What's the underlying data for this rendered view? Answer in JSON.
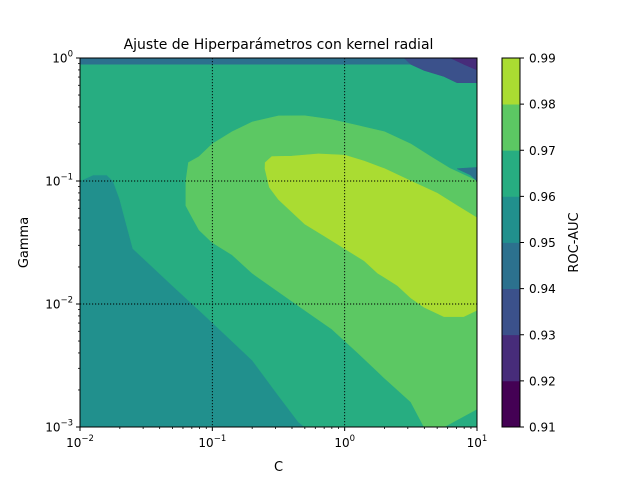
{
  "chart_data": {
    "type": "contourf",
    "title": "Ajuste de Hiperparámetros con kernel radial",
    "xlabel": "C",
    "ylabel": "Gamma",
    "x_scale": "log",
    "y_scale": "log",
    "xlim": [
      0.01,
      10
    ],
    "ylim": [
      0.001,
      1
    ],
    "x_ticks": [
      {
        "base": "10",
        "exp": "−2",
        "value": 0.01
      },
      {
        "base": "10",
        "exp": "−1",
        "value": 0.1
      },
      {
        "base": "10",
        "exp": "0",
        "value": 1
      },
      {
        "base": "10",
        "exp": "1",
        "value": 10
      }
    ],
    "y_ticks": [
      {
        "base": "10",
        "exp": "−3",
        "value": 0.001
      },
      {
        "base": "10",
        "exp": "−2",
        "value": 0.01
      },
      {
        "base": "10",
        "exp": "−1",
        "value": 0.1
      },
      {
        "base": "10",
        "exp": "0",
        "value": 1
      }
    ],
    "grid": "dotted, major ticks",
    "colorbar": {
      "label": "ROC-AUC",
      "levels": [
        0.91,
        0.92,
        0.93,
        0.94,
        0.95,
        0.96,
        0.97,
        0.98,
        0.99
      ],
      "tick_labels": [
        "0.91",
        "0.92",
        "0.93",
        "0.94",
        "0.95",
        "0.96",
        "0.97",
        "0.98",
        "0.99"
      ],
      "colors": [
        "#440154",
        "#472c7a",
        "#3b518b",
        "#2c718e",
        "#21908d",
        "#27ad81",
        "#5cc863",
        "#aadc32",
        "#d8e219"
      ]
    },
    "regions": [
      {
        "level": 0.95,
        "points": [
          [
            0.01,
            0.001
          ],
          [
            10,
            0.001
          ],
          [
            10,
            1
          ],
          [
            0.01,
            1
          ]
        ]
      },
      {
        "level": 0.96,
        "points": [
          [
            0.01,
            0.1
          ],
          [
            0.0126,
            0.112
          ],
          [
            0.0159,
            0.112
          ],
          [
            0.0178,
            0.1
          ],
          [
            0.02,
            0.0708
          ],
          [
            0.0224,
            0.0447
          ],
          [
            0.0251,
            0.0282
          ],
          [
            0.0316,
            0.0224
          ],
          [
            0.05,
            0.0141
          ],
          [
            0.0794,
            0.0089
          ],
          [
            0.126,
            0.0056
          ],
          [
            0.2,
            0.0035
          ],
          [
            0.316,
            0.0018
          ],
          [
            0.447,
            0.0011
          ],
          [
            0.5,
            0.001
          ],
          [
            10,
            0.001
          ],
          [
            10,
            0.891
          ],
          [
            0.01,
            0.891
          ]
        ]
      },
      {
        "level": 0.97,
        "points": [
          [
            0.0631,
            0.063
          ],
          [
            0.0631,
            0.1
          ],
          [
            0.0661,
            0.141
          ],
          [
            0.0794,
            0.158
          ],
          [
            0.1,
            0.2
          ],
          [
            0.141,
            0.251
          ],
          [
            0.2,
            0.302
          ],
          [
            0.316,
            0.338
          ],
          [
            0.5,
            0.339
          ],
          [
            0.794,
            0.316
          ],
          [
            1.26,
            0.282
          ],
          [
            2,
            0.251
          ],
          [
            3.16,
            0.2
          ],
          [
            4.47,
            0.158
          ],
          [
            6.31,
            0.126
          ],
          [
            10,
            0.1
          ],
          [
            10,
            0.0014
          ],
          [
            5.62,
            0.001
          ],
          [
            3.98,
            0.001
          ],
          [
            3.16,
            0.0016
          ],
          [
            2,
            0.0025
          ],
          [
            1.26,
            0.004
          ],
          [
            0.794,
            0.0063
          ],
          [
            0.5,
            0.0089
          ],
          [
            0.316,
            0.0126
          ],
          [
            0.2,
            0.0178
          ],
          [
            0.141,
            0.0251
          ],
          [
            0.1,
            0.0316
          ],
          [
            0.0794,
            0.04
          ],
          [
            0.0708,
            0.05
          ]
        ]
      },
      {
        "level": 0.98,
        "points": [
          [
            0.25,
            0.126
          ],
          [
            0.251,
            0.141
          ],
          [
            0.282,
            0.158
          ],
          [
            0.398,
            0.159
          ],
          [
            0.631,
            0.166
          ],
          [
            1,
            0.162
          ],
          [
            1.41,
            0.145
          ],
          [
            2,
            0.126
          ],
          [
            3.16,
            0.1
          ],
          [
            5.01,
            0.0794
          ],
          [
            7.08,
            0.063
          ],
          [
            10,
            0.0501
          ],
          [
            10,
            0.0089
          ],
          [
            7.94,
            0.0079
          ],
          [
            5.62,
            0.0079
          ],
          [
            3.98,
            0.0094
          ],
          [
            3.16,
            0.0112
          ],
          [
            2.51,
            0.0141
          ],
          [
            1.78,
            0.0178
          ],
          [
            1.41,
            0.0224
          ],
          [
            1,
            0.0282
          ],
          [
            0.708,
            0.0355
          ],
          [
            0.5,
            0.0447
          ],
          [
            0.398,
            0.0562
          ],
          [
            0.316,
            0.0708
          ],
          [
            0.27,
            0.0891
          ]
        ]
      },
      {
        "level": 0.94,
        "points": [
          [
            0.01,
            0.891
          ],
          [
            10,
            0.891
          ],
          [
            10,
            0.63
          ],
          [
            7.08,
            0.63
          ],
          [
            5.62,
            0.708
          ],
          [
            3.98,
            0.794
          ],
          [
            3.16,
            0.891
          ],
          [
            2.82,
            1
          ],
          [
            0.01,
            1
          ]
        ]
      },
      {
        "level": 0.94,
        "points": [
          [
            10,
            0.1
          ],
          [
            8.91,
            0.112
          ],
          [
            7.08,
            0.126
          ],
          [
            10,
            0.129
          ]
        ]
      },
      {
        "level": 0.93,
        "points": [
          [
            2.82,
            1
          ],
          [
            3.16,
            0.891
          ],
          [
            3.98,
            0.794
          ],
          [
            5.62,
            0.708
          ],
          [
            7.08,
            0.63
          ],
          [
            10,
            0.63
          ],
          [
            10,
            0.8
          ],
          [
            7.94,
            0.891
          ],
          [
            6.31,
            1
          ]
        ]
      },
      {
        "level": 0.92,
        "points": [
          [
            6.31,
            1
          ],
          [
            7.94,
            0.891
          ],
          [
            10,
            0.8
          ],
          [
            10,
            1
          ]
        ]
      },
      {
        "level": 0.96,
        "points": [
          [
            0.01,
            0.891
          ],
          [
            10,
            0.891
          ],
          [
            10,
            0.6
          ],
          [
            7.94,
            0.45
          ],
          [
            6.31,
            0.4
          ],
          [
            4.47,
            0.356
          ],
          [
            3.16,
            0.3
          ],
          [
            0.01,
            0.3
          ]
        ],
        "part": "upper-band-placeholder",
        "skip": true
      }
    ]
  }
}
